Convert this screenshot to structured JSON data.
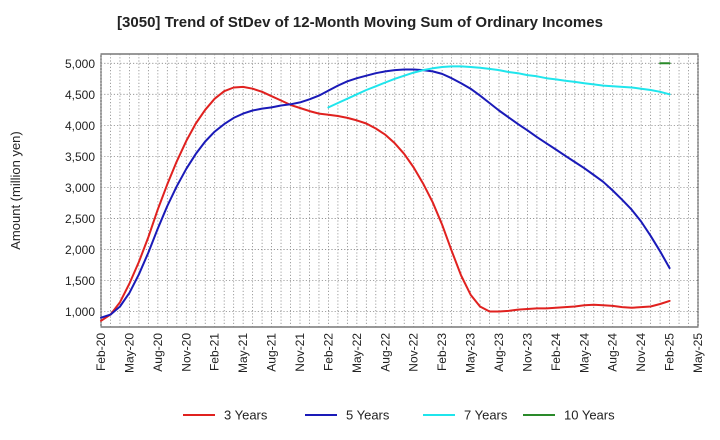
{
  "chart_data": {
    "type": "line",
    "title": "[3050]  Trend of StDev of 12-Month Moving Sum of Ordinary Incomes",
    "xlabel": "",
    "ylabel": "Amount (million yen)",
    "ylim": [
      750,
      5150
    ],
    "yticks": [
      1000,
      1500,
      2000,
      2500,
      3000,
      3500,
      4000,
      4500,
      5000
    ],
    "ytick_labels": [
      "1,000",
      "1,500",
      "2,000",
      "2,500",
      "3,000",
      "3,500",
      "4,000",
      "4,500",
      "5,000"
    ],
    "xtick_labels": [
      "Feb-20",
      "May-20",
      "Aug-20",
      "Nov-20",
      "Feb-21",
      "May-21",
      "Aug-21",
      "Nov-21",
      "Feb-22",
      "May-22",
      "Aug-22",
      "Nov-22",
      "Feb-23",
      "May-23",
      "Aug-23",
      "Nov-23",
      "Feb-24",
      "May-24",
      "Aug-24",
      "Nov-24",
      "Feb-25",
      "May-25"
    ],
    "grid": true,
    "legend_position": "bottom",
    "series": [
      {
        "name": "3 Years",
        "color": "#e0211f",
        "x": [
          "Feb-20",
          "Mar-20",
          "Apr-20",
          "May-20",
          "Jun-20",
          "Jul-20",
          "Aug-20",
          "Sep-20",
          "Oct-20",
          "Nov-20",
          "Dec-20",
          "Jan-21",
          "Feb-21",
          "Mar-21",
          "Apr-21",
          "May-21",
          "Jun-21",
          "Jul-21",
          "Aug-21",
          "Sep-21",
          "Oct-21",
          "Nov-21",
          "Dec-21",
          "Jan-22",
          "Feb-22",
          "Mar-22",
          "Apr-22",
          "May-22",
          "Jun-22",
          "Jul-22",
          "Aug-22",
          "Sep-22",
          "Oct-22",
          "Nov-22",
          "Dec-22",
          "Jan-23",
          "Feb-23",
          "Mar-23",
          "Apr-23",
          "May-23",
          "Jun-23",
          "Jul-23",
          "Aug-23",
          "Sep-23",
          "Oct-23",
          "Nov-23",
          "Dec-23",
          "Jan-24",
          "Feb-24",
          "Mar-24",
          "Apr-24",
          "May-24",
          "Jun-24",
          "Jul-24",
          "Aug-24",
          "Sep-24",
          "Oct-24",
          "Nov-24",
          "Dec-24",
          "Jan-25",
          "Feb-25"
        ],
        "values": [
          850,
          950,
          1150,
          1450,
          1800,
          2200,
          2650,
          3050,
          3420,
          3750,
          4030,
          4250,
          4430,
          4550,
          4610,
          4620,
          4590,
          4540,
          4470,
          4400,
          4330,
          4280,
          4230,
          4190,
          4170,
          4150,
          4120,
          4080,
          4030,
          3950,
          3850,
          3710,
          3540,
          3320,
          3060,
          2760,
          2400,
          1980,
          1580,
          1270,
          1080,
          1000,
          1000,
          1010,
          1030,
          1040,
          1050,
          1050,
          1060,
          1070,
          1080,
          1100,
          1110,
          1100,
          1090,
          1070,
          1060,
          1070,
          1080,
          1120,
          1170
        ]
      },
      {
        "name": "5 Years",
        "color": "#1a1ab8",
        "x": [
          "Feb-20",
          "Mar-20",
          "Apr-20",
          "May-20",
          "Jun-20",
          "Jul-20",
          "Aug-20",
          "Sep-20",
          "Oct-20",
          "Nov-20",
          "Dec-20",
          "Jan-21",
          "Feb-21",
          "Mar-21",
          "Apr-21",
          "May-21",
          "Jun-21",
          "Jul-21",
          "Aug-21",
          "Sep-21",
          "Oct-21",
          "Nov-21",
          "Dec-21",
          "Jan-22",
          "Feb-22",
          "Mar-22",
          "Apr-22",
          "May-22",
          "Jun-22",
          "Jul-22",
          "Aug-22",
          "Sep-22",
          "Oct-22",
          "Nov-22",
          "Dec-22",
          "Jan-23",
          "Feb-23",
          "Mar-23",
          "Apr-23",
          "May-23",
          "Jun-23",
          "Jul-23",
          "Aug-23",
          "Sep-23",
          "Oct-23",
          "Nov-23",
          "Dec-23",
          "Jan-24",
          "Feb-24",
          "Mar-24",
          "Apr-24",
          "May-24",
          "Jun-24",
          "Jul-24",
          "Aug-24",
          "Sep-24",
          "Oct-24",
          "Nov-24",
          "Dec-24",
          "Jan-25",
          "Feb-25"
        ],
        "values": [
          900,
          950,
          1080,
          1300,
          1600,
          1950,
          2340,
          2700,
          3020,
          3300,
          3540,
          3740,
          3900,
          4020,
          4120,
          4190,
          4240,
          4270,
          4290,
          4320,
          4340,
          4370,
          4420,
          4480,
          4560,
          4640,
          4710,
          4760,
          4800,
          4840,
          4870,
          4890,
          4900,
          4900,
          4890,
          4870,
          4830,
          4760,
          4680,
          4590,
          4480,
          4360,
          4240,
          4130,
          4020,
          3920,
          3810,
          3710,
          3610,
          3510,
          3410,
          3310,
          3200,
          3090,
          2950,
          2800,
          2640,
          2450,
          2220,
          1970,
          1700
        ]
      },
      {
        "name": "7 Years",
        "color": "#1fe5ec",
        "x": [
          "Feb-22",
          "Mar-22",
          "Apr-22",
          "May-22",
          "Jun-22",
          "Jul-22",
          "Aug-22",
          "Sep-22",
          "Oct-22",
          "Nov-22",
          "Dec-22",
          "Jan-23",
          "Feb-23",
          "Mar-23",
          "Apr-23",
          "May-23",
          "Jun-23",
          "Jul-23",
          "Aug-23",
          "Sep-23",
          "Oct-23",
          "Nov-23",
          "Dec-23",
          "Jan-24",
          "Feb-24",
          "Mar-24",
          "Apr-24",
          "May-24",
          "Jun-24",
          "Jul-24",
          "Aug-24",
          "Sep-24",
          "Oct-24",
          "Nov-24",
          "Dec-24",
          "Jan-25",
          "Feb-25"
        ],
        "values": [
          4290,
          4360,
          4430,
          4500,
          4570,
          4630,
          4690,
          4750,
          4800,
          4850,
          4890,
          4920,
          4940,
          4950,
          4950,
          4940,
          4930,
          4910,
          4890,
          4860,
          4840,
          4810,
          4790,
          4760,
          4740,
          4720,
          4700,
          4680,
          4660,
          4640,
          4630,
          4620,
          4610,
          4590,
          4570,
          4540,
          4500
        ]
      },
      {
        "name": "10 Years",
        "color": "#2a8a2a",
        "x": [
          "Jan-25",
          "Feb-25"
        ],
        "values": [
          5000,
          5000
        ]
      }
    ]
  }
}
